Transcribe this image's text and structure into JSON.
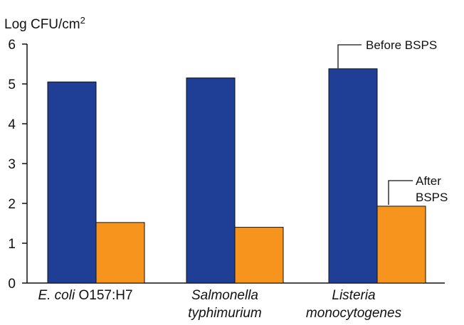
{
  "chart_data": {
    "type": "bar",
    "ylabel": "Log CFU/cm",
    "ylabel_sup": "2",
    "ylim": [
      0,
      6
    ],
    "yticks": [
      "0",
      "1",
      "2",
      "3",
      "4",
      "5",
      "6"
    ],
    "categories": [
      {
        "italic": "E. coli",
        "rest": " O157:H7"
      },
      {
        "line1": "Salmonella",
        "line2": "typhimurium"
      },
      {
        "line1": "Listeria",
        "line2": "monocytogenes"
      }
    ],
    "series": [
      {
        "name": "Before BSPS",
        "color": "#1f3f97",
        "values": [
          5.05,
          5.15,
          5.38
        ]
      },
      {
        "name": "After BSPS",
        "color": "#f7941d",
        "values": [
          1.52,
          1.4,
          1.93
        ]
      }
    ],
    "annotations": {
      "before": "Before BSPS",
      "after_line1": "After",
      "after_line2": "BSPS"
    }
  }
}
